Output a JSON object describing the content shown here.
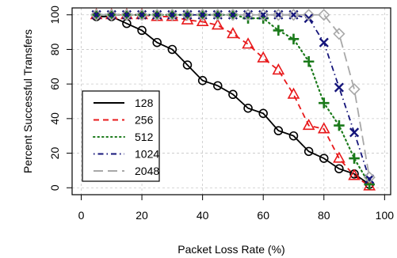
{
  "chart_data": {
    "type": "line",
    "xlabel": "Packet Loss Rate (%)",
    "ylabel": "Percent Successful Transfers",
    "xlim": [
      -3,
      102
    ],
    "ylim": [
      -4,
      104
    ],
    "xticks": [
      0,
      20,
      40,
      60,
      80,
      100
    ],
    "yticks": [
      0,
      20,
      40,
      60,
      80,
      100
    ],
    "grid": true,
    "legend_position": "bottom-left",
    "x": [
      5,
      10,
      15,
      20,
      25,
      30,
      35,
      40,
      45,
      50,
      55,
      60,
      65,
      70,
      75,
      80,
      85,
      90,
      95
    ],
    "series": [
      {
        "name": "128",
        "color": "#000000",
        "dash": "solid",
        "marker": "circle",
        "values": [
          99,
          99,
          95,
          91,
          84,
          80,
          71,
          62,
          59,
          54,
          46,
          43,
          33,
          30,
          21,
          17,
          11,
          8,
          2
        ]
      },
      {
        "name": "256",
        "color": "#e8191b",
        "dash": "dashed",
        "marker": "triangle",
        "values": [
          100,
          100,
          100,
          100,
          99,
          99,
          97,
          96,
          94,
          89,
          83,
          75,
          68,
          54,
          36,
          34,
          17,
          7,
          1
        ]
      },
      {
        "name": "512",
        "color": "#1a7a1a",
        "dash": "dotted",
        "marker": "plus",
        "values": [
          100,
          100,
          100,
          100,
          100,
          100,
          100,
          100,
          100,
          100,
          98,
          98,
          91,
          86,
          73,
          49,
          36,
          17,
          2
        ]
      },
      {
        "name": "1024",
        "color": "#14147a",
        "dash": "dotdash",
        "marker": "x",
        "values": [
          100,
          100,
          100,
          100,
          100,
          100,
          100,
          100,
          100,
          100,
          100,
          100,
          100,
          100,
          98,
          84,
          58,
          32,
          5
        ]
      },
      {
        "name": "2048",
        "color": "#a8a8a8",
        "dash": "longdash",
        "marker": "diamond",
        "values": [
          100,
          100,
          100,
          100,
          100,
          100,
          100,
          100,
          100,
          100,
          100,
          100,
          100,
          100,
          100,
          100,
          89,
          57,
          6
        ]
      }
    ]
  }
}
